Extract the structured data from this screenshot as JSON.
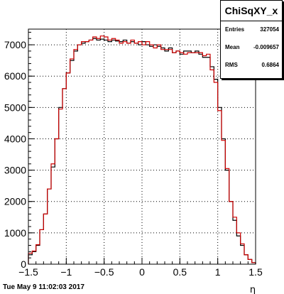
{
  "chart_data": {
    "type": "line",
    "title": "",
    "xlabel": "η",
    "ylabel": "",
    "xlim": [
      -1.5,
      1.5
    ],
    "ylim": [
      0,
      7500
    ],
    "grid": true,
    "x_ticks": [
      "−1.5",
      "−1",
      "−0.5",
      "0",
      "0.5",
      "1",
      "1.5"
    ],
    "y_ticks": [
      "0",
      "1000",
      "2000",
      "3000",
      "4000",
      "5000",
      "6000",
      "7000"
    ],
    "bin_edges": [
      -1.5,
      -1.45,
      -1.4,
      -1.35,
      -1.3,
      -1.25,
      -1.2,
      -1.15,
      -1.1,
      -1.05,
      -1.0,
      -0.95,
      -0.9,
      -0.85,
      -0.8,
      -0.75,
      -0.7,
      -0.65,
      -0.6,
      -0.55,
      -0.5,
      -0.45,
      -0.4,
      -0.35,
      -0.3,
      -0.25,
      -0.2,
      -0.15,
      -0.1,
      -0.05,
      0.0,
      0.05,
      0.1,
      0.15,
      0.2,
      0.25,
      0.3,
      0.35,
      0.4,
      0.45,
      0.5,
      0.55,
      0.6,
      0.65,
      0.7,
      0.75,
      0.8,
      0.85,
      0.9,
      0.95,
      1.0,
      1.05,
      1.1,
      1.15,
      1.2,
      1.25,
      1.3,
      1.35,
      1.4,
      1.45,
      1.5
    ],
    "series": [
      {
        "color": "#000000",
        "values": [
          300,
          400,
          600,
          1100,
          1600,
          2400,
          3100,
          4000,
          5000,
          5600,
          6100,
          6500,
          6800,
          7000,
          7050,
          7100,
          7150,
          7200,
          7150,
          7180,
          7150,
          7100,
          7150,
          7120,
          7100,
          7150,
          7050,
          7100,
          7050,
          7000,
          7100,
          7000,
          6950,
          7000,
          6950,
          6900,
          6800,
          6900,
          6750,
          6800,
          6700,
          6800,
          6800,
          6750,
          6800,
          6700,
          6600,
          6600,
          6300,
          5900,
          5000,
          4000,
          3000,
          2000,
          1400,
          900,
          600,
          300,
          150,
          50
        ]
      },
      {
        "color": "#cc0000",
        "values": [
          350,
          420,
          620,
          1100,
          1600,
          2400,
          3200,
          4000,
          4950,
          5600,
          6100,
          6550,
          6850,
          7000,
          7100,
          7100,
          7150,
          7250,
          7200,
          7280,
          7250,
          7150,
          7200,
          7150,
          7050,
          7100,
          7050,
          7150,
          7050,
          7100,
          7000,
          7100,
          7000,
          6900,
          7000,
          6850,
          6850,
          6850,
          6750,
          6800,
          6750,
          6700,
          6750,
          6750,
          6750,
          6750,
          6650,
          6700,
          6200,
          5800,
          4900,
          3950,
          3050,
          2000,
          1500,
          1000,
          650,
          300,
          150,
          50
        ]
      }
    ],
    "legend": "top-right"
  },
  "stats": {
    "title": "ChiSqXY_x",
    "rows": [
      {
        "label": "Entries",
        "value": "327054"
      },
      {
        "label": "Mean",
        "value": "-0.009657"
      },
      {
        "label": "RMS",
        "value": "0.6864"
      }
    ]
  },
  "footer": {
    "timestamp": "Tue May  9 11:02:03 2017"
  }
}
